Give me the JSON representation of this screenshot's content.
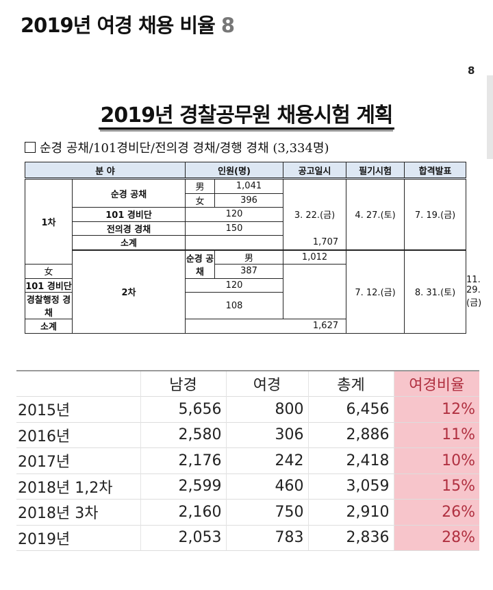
{
  "post": {
    "title": "2019년 여경 채용 비율",
    "title_count": "8",
    "page_number": "8"
  },
  "plan": {
    "title": "2019년 경찰공무원 채용시험 계획",
    "subtitle": "순경 공채/101경비단/전의경 경채/경행 경채 (3,334명)",
    "headers": [
      "분 야",
      "인원(명)",
      "공고일시",
      "필기시험",
      "합격발표"
    ],
    "rounds": [
      {
        "round": "1차",
        "rows": [
          {
            "field": "순경 공채",
            "male_label": "男",
            "male": "1,041",
            "female_label": "女",
            "female": "396"
          },
          {
            "field": "101 경비단",
            "count": "120"
          },
          {
            "field": "전의경 경채",
            "count": "150"
          }
        ],
        "subtotal_label": "소계",
        "subtotal": "1,707",
        "notice": "3. 22.(금)",
        "exam": "4. 27.(토)",
        "result": "7. 19.(금)"
      },
      {
        "round": "2차",
        "rows": [
          {
            "field": "순경 공채",
            "male_label": "男",
            "male": "1,012",
            "female_label": "女",
            "female": "387"
          },
          {
            "field": "101 경비단",
            "count": "120"
          },
          {
            "field": "경찰행정 경채",
            "count": "108"
          }
        ],
        "subtotal_label": "소계",
        "subtotal": "1,627",
        "notice": "7. 12.(금)",
        "exam": "8. 31.(토)",
        "result": "11. 29.(금)"
      }
    ]
  },
  "stats": {
    "headers": [
      "",
      "남경",
      "여경",
      "총계",
      "여경비율"
    ],
    "highlight_color": "#f7c5cb",
    "rows": [
      [
        "2015년",
        "5,656",
        "800",
        "6,456",
        "12%"
      ],
      [
        "2016년",
        "2,580",
        "306",
        "2,886",
        "11%"
      ],
      [
        "2017년",
        "2,176",
        "242",
        "2,418",
        "10%"
      ],
      [
        "2018년 1,2차",
        "2,599",
        "460",
        "3,059",
        "15%"
      ],
      [
        "2018년 3차",
        "2,160",
        "750",
        "2,910",
        "26%"
      ],
      [
        "2019년",
        "2,053",
        "783",
        "2,836",
        "28%"
      ]
    ]
  }
}
